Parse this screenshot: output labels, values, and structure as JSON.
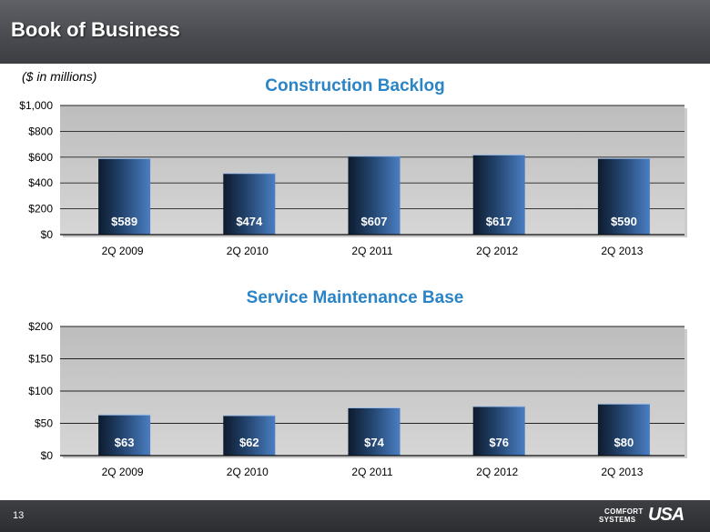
{
  "header": {
    "title": "Book of Business"
  },
  "units_note": "($ in millions)",
  "footer": {
    "page_number": "13",
    "logo_line1": "COMFORT",
    "logo_line2": "SYSTEMS",
    "logo_usa": "USA"
  },
  "colors": {
    "title_blue": "#2a84c6",
    "bar_dark": "#0d1b2e",
    "bar_light": "#4a7ec2",
    "plot_bg": "#c9c9c9"
  },
  "chart_data": [
    {
      "type": "bar",
      "title": "Construction Backlog",
      "categories": [
        "2Q 2009",
        "2Q 2010",
        "2Q 2011",
        "2Q 2012",
        "2Q 2013"
      ],
      "values": [
        589,
        474,
        607,
        617,
        590
      ],
      "data_labels": [
        "$589",
        "$474",
        "$607",
        "$617",
        "$590"
      ],
      "yticks": [
        "$0",
        "$200",
        "$400",
        "$600",
        "$800",
        "$1,000"
      ],
      "ytick_values": [
        0,
        200,
        400,
        600,
        800,
        1000
      ],
      "ylim": [
        0,
        1000
      ],
      "grid": true
    },
    {
      "type": "bar",
      "title": "Service Maintenance Base",
      "categories": [
        "2Q 2009",
        "2Q 2010",
        "2Q 2011",
        "2Q 2012",
        "2Q 2013"
      ],
      "values": [
        63,
        62,
        74,
        76,
        80
      ],
      "data_labels": [
        "$63",
        "$62",
        "$74",
        "$76",
        "$80"
      ],
      "yticks": [
        "$0",
        "$50",
        "$100",
        "$150",
        "$200"
      ],
      "ytick_values": [
        0,
        50,
        100,
        150,
        200
      ],
      "ylim": [
        0,
        200
      ],
      "grid": true
    }
  ]
}
